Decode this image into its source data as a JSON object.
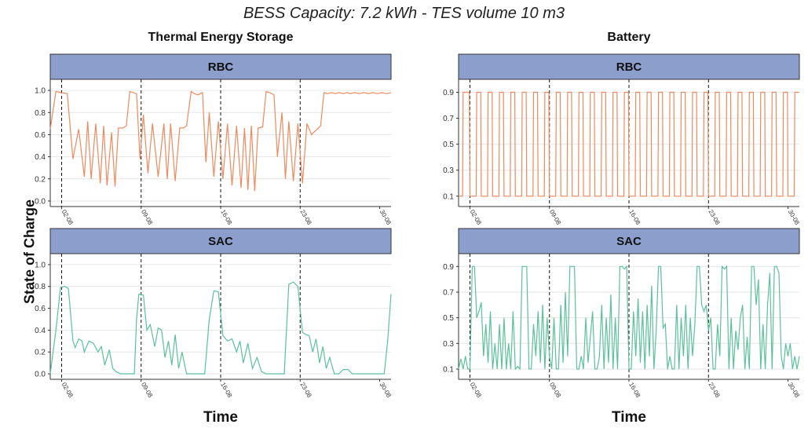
{
  "title": "BESS Capacity: 7.2 kWh - TES volume 10 m3",
  "columns": [
    "Thermal Energy Storage",
    "Battery"
  ],
  "ylabel": "State of Charge",
  "xlabel": "Time",
  "colors": {
    "RBC": "#ee8a5f",
    "SAC": "#5cc19a",
    "strip": "#8c9ecb",
    "grid": "#e6e6e6",
    "vline": "#111111"
  },
  "chart_data": [
    {
      "type": "line",
      "panel": "Thermal Energy Storage",
      "strip": "RBC",
      "x_range_days": [
        0,
        30
      ],
      "ylim": [
        -0.05,
        1.1
      ],
      "y_ticks": [
        "0.0",
        "0.2",
        "0.4",
        "0.6",
        "0.8",
        "1.0"
      ],
      "x_ticks": [
        "02-08",
        "09-08",
        "16-08",
        "23-08",
        "30-08"
      ],
      "grid": true,
      "series": [
        {
          "x": [
            0,
            0.5,
            1.0,
            1.5,
            2.0,
            2.5,
            3.0,
            3.3,
            3.6,
            4.0,
            4.4,
            4.7,
            5.0,
            5.4,
            5.7,
            6.0,
            6.4,
            6.7,
            7.0,
            7.3,
            7.6,
            7.9,
            8.2,
            8.6,
            9.0,
            9.5,
            10.0,
            10.3,
            10.6,
            11.0,
            11.4,
            11.7,
            12.0,
            12.4,
            12.7,
            13.0,
            13.4,
            13.7,
            14.0,
            14.4,
            14.8,
            15.2,
            15.6,
            16.0,
            16.4,
            16.8,
            17.1,
            17.4,
            17.7,
            18.0,
            18.3,
            18.7,
            19.0,
            19.3,
            19.7,
            20.0,
            20.4,
            20.7,
            21.0,
            21.4,
            21.8,
            22.2,
            22.6,
            23.0,
            23.4,
            23.8,
            24.1,
            24.4,
            24.8,
            25.1,
            25.4,
            25.8,
            26.1,
            26.4,
            26.8,
            27.2,
            27.6,
            28.0,
            28.4,
            28.8,
            29.2,
            29.6,
            30.0
          ],
          "y": [
            0.65,
            0.99,
            0.98,
            0.97,
            0.38,
            0.65,
            0.22,
            0.72,
            0.2,
            0.7,
            0.16,
            0.68,
            0.14,
            0.62,
            0.13,
            0.66,
            0.66,
            0.68,
            0.99,
            0.98,
            0.97,
            0.38,
            0.78,
            0.25,
            0.7,
            0.22,
            0.7,
            0.2,
            0.7,
            0.18,
            0.66,
            0.66,
            0.68,
            0.99,
            0.97,
            0.96,
            0.98,
            0.35,
            0.8,
            0.22,
            0.72,
            0.2,
            0.7,
            0.14,
            0.68,
            0.12,
            0.66,
            0.1,
            0.68,
            0.09,
            0.66,
            0.67,
            0.99,
            0.98,
            0.96,
            0.4,
            0.8,
            0.2,
            0.72,
            0.18,
            0.7,
            0.16,
            0.7,
            0.6,
            0.64,
            0.68,
            0.98,
            0.97,
            0.98,
            0.97,
            0.98,
            0.97,
            0.98,
            0.97,
            0.98,
            0.97,
            0.98,
            0.97,
            0.98,
            0.97,
            0.98,
            0.97,
            0.98
          ]
        }
      ]
    },
    {
      "type": "line",
      "panel": "Thermal Energy Storage",
      "strip": "SAC",
      "x_range_days": [
        0,
        30
      ],
      "ylim": [
        -0.05,
        1.1
      ],
      "y_ticks": [
        "0.0",
        "0.2",
        "0.4",
        "0.6",
        "0.8",
        "1.0"
      ],
      "x_ticks": [
        "02-08",
        "09-08",
        "16-08",
        "23-08",
        "30-08"
      ],
      "grid": true,
      "series": [
        {
          "x": [
            0,
            0.5,
            0.9,
            1.3,
            1.6,
            2.0,
            2.2,
            2.5,
            2.8,
            3.0,
            3.4,
            3.8,
            4.2,
            4.5,
            4.8,
            5.2,
            5.5,
            5.8,
            6.2,
            6.6,
            7.0,
            7.4,
            7.6,
            7.8,
            8.2,
            8.5,
            8.8,
            9.2,
            9.5,
            9.8,
            10.1,
            10.4,
            10.7,
            11.0,
            11.3,
            11.6,
            12.0,
            12.4,
            12.8,
            13.2,
            13.6,
            14.0,
            14.4,
            14.8,
            15.2,
            15.6,
            16.0,
            16.4,
            16.7,
            17.0,
            17.4,
            17.8,
            18.2,
            18.6,
            19.0,
            19.4,
            19.8,
            20.2,
            20.6,
            21.0,
            21.4,
            21.8,
            22.2,
            22.5,
            22.8,
            23.1,
            23.4,
            23.7,
            24.0,
            24.3,
            24.6,
            25.0,
            25.4,
            25.8,
            26.2,
            26.6,
            27.0,
            27.4,
            27.8,
            28.2,
            28.6,
            29.0,
            29.4,
            29.7,
            30.0
          ],
          "y": [
            0.0,
            0.4,
            0.79,
            0.8,
            0.78,
            0.3,
            0.24,
            0.32,
            0.3,
            0.2,
            0.3,
            0.28,
            0.2,
            0.25,
            0.08,
            0.22,
            0.05,
            0.02,
            0.0,
            0.0,
            0.0,
            0.0,
            0.5,
            0.73,
            0.72,
            0.4,
            0.45,
            0.25,
            0.42,
            0.4,
            0.15,
            0.3,
            0.08,
            0.36,
            0.05,
            0.2,
            0.0,
            0.0,
            0.0,
            0.0,
            0.0,
            0.5,
            0.76,
            0.75,
            0.35,
            0.3,
            0.32,
            0.2,
            0.3,
            0.1,
            0.28,
            0.05,
            0.15,
            0.02,
            0.0,
            0.0,
            0.0,
            0.0,
            0.0,
            0.82,
            0.84,
            0.8,
            0.38,
            0.36,
            0.35,
            0.2,
            0.32,
            0.1,
            0.25,
            0.05,
            0.15,
            0.0,
            0.0,
            0.04,
            0.04,
            0.0,
            0.0,
            0.0,
            0.0,
            0.0,
            0.0,
            0.0,
            0.0,
            0.3,
            0.73
          ]
        }
      ]
    },
    {
      "type": "line",
      "panel": "Battery",
      "strip": "RBC",
      "x_range_days": [
        0,
        30
      ],
      "ylim": [
        0.02,
        1.0
      ],
      "y_ticks": [
        "0.1",
        "0.3",
        "0.5",
        "0.7",
        "0.9"
      ],
      "x_ticks": [
        "02-08",
        "09-08",
        "16-08",
        "23-08",
        "30-08"
      ],
      "grid": true,
      "style": "square-wave",
      "series": [
        {
          "pattern": "daily cycle between 0.9 and 0.1 (start at 0.1, reaches 0.9 on day 0.4)",
          "levels": {
            "high": 0.9,
            "low": 0.1
          },
          "days": 30
        }
      ]
    },
    {
      "type": "line",
      "panel": "Battery",
      "strip": "SAC",
      "x_range_days": [
        0,
        30
      ],
      "ylim": [
        0.02,
        1.0
      ],
      "y_ticks": [
        "0.1",
        "0.3",
        "0.5",
        "0.7",
        "0.9"
      ],
      "x_ticks": [
        "02-08",
        "09-08",
        "16-08",
        "23-08",
        "30-08"
      ],
      "grid": true,
      "series": [
        {
          "x": [
            0,
            0.2,
            0.4,
            0.6,
            0.8,
            1.0,
            1.2,
            1.4,
            1.6,
            1.8,
            2.0,
            2.2,
            2.4,
            2.6,
            2.8,
            3.0,
            3.2,
            3.4,
            3.6,
            3.8,
            4.0,
            4.2,
            4.4,
            4.6,
            4.8,
            5.0,
            5.2,
            5.4,
            5.6,
            5.8,
            6.0,
            6.2,
            6.4,
            6.6,
            6.8,
            7.0,
            7.2,
            7.4,
            7.6,
            7.8,
            8.0,
            8.2,
            8.4,
            8.6,
            8.8,
            9.0,
            9.2,
            9.4,
            9.6,
            9.8,
            10.0,
            10.2,
            10.4,
            10.6,
            10.8,
            11.0,
            11.2,
            11.4,
            11.6,
            11.8,
            12.0,
            12.2,
            12.4,
            12.6,
            12.8,
            13.0,
            13.2,
            13.4,
            13.6,
            13.8,
            14.0,
            14.2,
            14.4,
            14.6,
            14.8,
            15.0,
            15.2,
            15.4,
            15.6,
            15.8,
            16.0,
            16.2,
            16.4,
            16.6,
            16.8,
            17.0,
            17.2,
            17.4,
            17.6,
            17.8,
            18.0,
            18.2,
            18.4,
            18.6,
            18.8,
            19.0,
            19.2,
            19.4,
            19.6,
            19.8,
            20.0,
            20.2,
            20.4,
            20.6,
            20.8,
            21.0,
            21.2,
            21.4,
            21.6,
            21.8,
            22.0,
            22.2,
            22.4,
            22.6,
            22.8,
            23.0,
            23.2,
            23.4,
            23.6,
            23.8,
            24.0,
            24.2,
            24.4,
            24.6,
            24.8,
            25.0,
            25.2,
            25.4,
            25.6,
            25.8,
            26.0,
            26.2,
            26.4,
            26.6,
            26.8,
            27.0,
            27.2,
            27.4,
            27.6,
            27.8,
            28.0,
            28.2,
            28.4,
            28.6,
            28.8,
            29.0,
            29.2,
            29.4,
            29.6,
            29.8,
            30.0
          ],
          "y": [
            0.1,
            0.18,
            0.1,
            0.2,
            0.1,
            0.1,
            0.9,
            0.9,
            0.5,
            0.55,
            0.62,
            0.2,
            0.45,
            0.15,
            0.55,
            0.1,
            0.3,
            0.1,
            0.45,
            0.1,
            0.5,
            0.1,
            0.3,
            0.1,
            0.55,
            0.1,
            0.12,
            0.1,
            0.9,
            0.9,
            0.9,
            0.1,
            0.1,
            0.45,
            0.2,
            0.55,
            0.15,
            0.6,
            0.1,
            0.5,
            0.2,
            0.1,
            0.5,
            0.1,
            0.1,
            0.6,
            0.15,
            0.7,
            0.2,
            0.9,
            0.9,
            0.9,
            0.1,
            0.1,
            0.2,
            0.1,
            0.5,
            0.15,
            0.35,
            0.55,
            0.1,
            0.1,
            0.2,
            0.6,
            0.1,
            0.5,
            0.15,
            0.68,
            0.1,
            0.5,
            0.1,
            0.9,
            0.9,
            0.88,
            0.9,
            0.1,
            0.1,
            0.55,
            0.2,
            0.65,
            0.15,
            0.55,
            0.1,
            0.6,
            0.2,
            0.75,
            0.1,
            0.4,
            0.9,
            0.9,
            0.42,
            0.45,
            0.1,
            0.2,
            0.1,
            0.1,
            0.6,
            0.1,
            0.5,
            0.2,
            0.6,
            0.1,
            0.5,
            0.2,
            0.45,
            0.9,
            0.9,
            0.6,
            0.55,
            0.6,
            0.4,
            0.5,
            0.1,
            0.1,
            0.45,
            0.2,
            0.9,
            0.88,
            0.9,
            0.1,
            0.5,
            0.1,
            0.4,
            0.25,
            0.5,
            0.6,
            0.1,
            0.35,
            0.1,
            0.9,
            0.9,
            0.6,
            0.8,
            0.1,
            0.45,
            0.1,
            0.6,
            0.85,
            0.1,
            0.9,
            0.9,
            0.85,
            0.2,
            0.1,
            0.3,
            0.2,
            0.3,
            0.1,
            0.2,
            0.1,
            0.2
          ]
        }
      ]
    }
  ]
}
